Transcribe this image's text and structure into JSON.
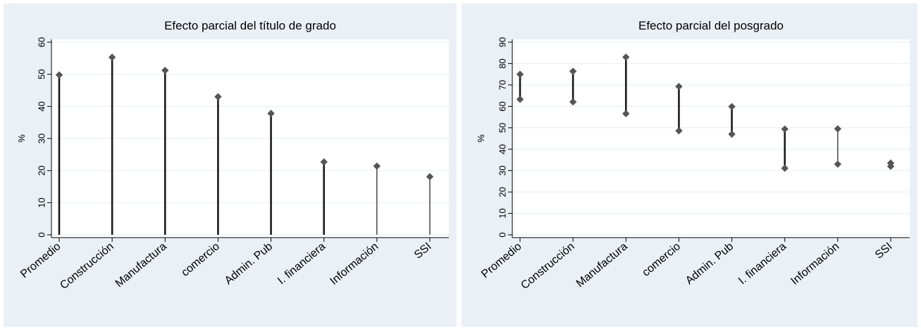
{
  "chart_data": [
    {
      "type": "lollipop",
      "title": "Efecto parcial del título de grado",
      "ylabel": "%",
      "xlabel": "",
      "ylim": [
        0,
        60
      ],
      "yticks": [
        0,
        10,
        20,
        30,
        40,
        50,
        60
      ],
      "grid": true,
      "categories": [
        "Promedio",
        "Construcción",
        "Manufactura",
        "comercio",
        "Admin. Pub",
        "I. financiera",
        "Información",
        "SSI"
      ],
      "low": [
        0,
        0,
        0,
        0,
        0,
        0,
        0,
        0
      ],
      "high": [
        49.8,
        55.3,
        51.2,
        43.0,
        37.8,
        22.7,
        21.4,
        18.1
      ]
    },
    {
      "type": "range",
      "title": "Efecto parcial del posgrado",
      "ylabel": "%",
      "xlabel": "",
      "ylim": [
        0,
        90
      ],
      "yticks": [
        0,
        10,
        20,
        30,
        40,
        50,
        60,
        70,
        80,
        90
      ],
      "grid": true,
      "categories": [
        "Promedio",
        "Construcción",
        "Manufactura",
        "comercio",
        "Admin. Pub",
        "I. financiera",
        "Información",
        "SSI"
      ],
      "low": [
        63.3,
        62.1,
        56.6,
        48.6,
        47.0,
        31.1,
        33.0,
        32.0
      ],
      "high": [
        75.0,
        76.4,
        83.0,
        69.3,
        59.9,
        49.4,
        49.5,
        33.5
      ]
    }
  ],
  "colors": {
    "panel_background": "#eaf0f5",
    "plot_background": "#ffffff",
    "gridline": "#eaf0f5",
    "stem": "#1a1a1a",
    "marker": "#555555"
  }
}
